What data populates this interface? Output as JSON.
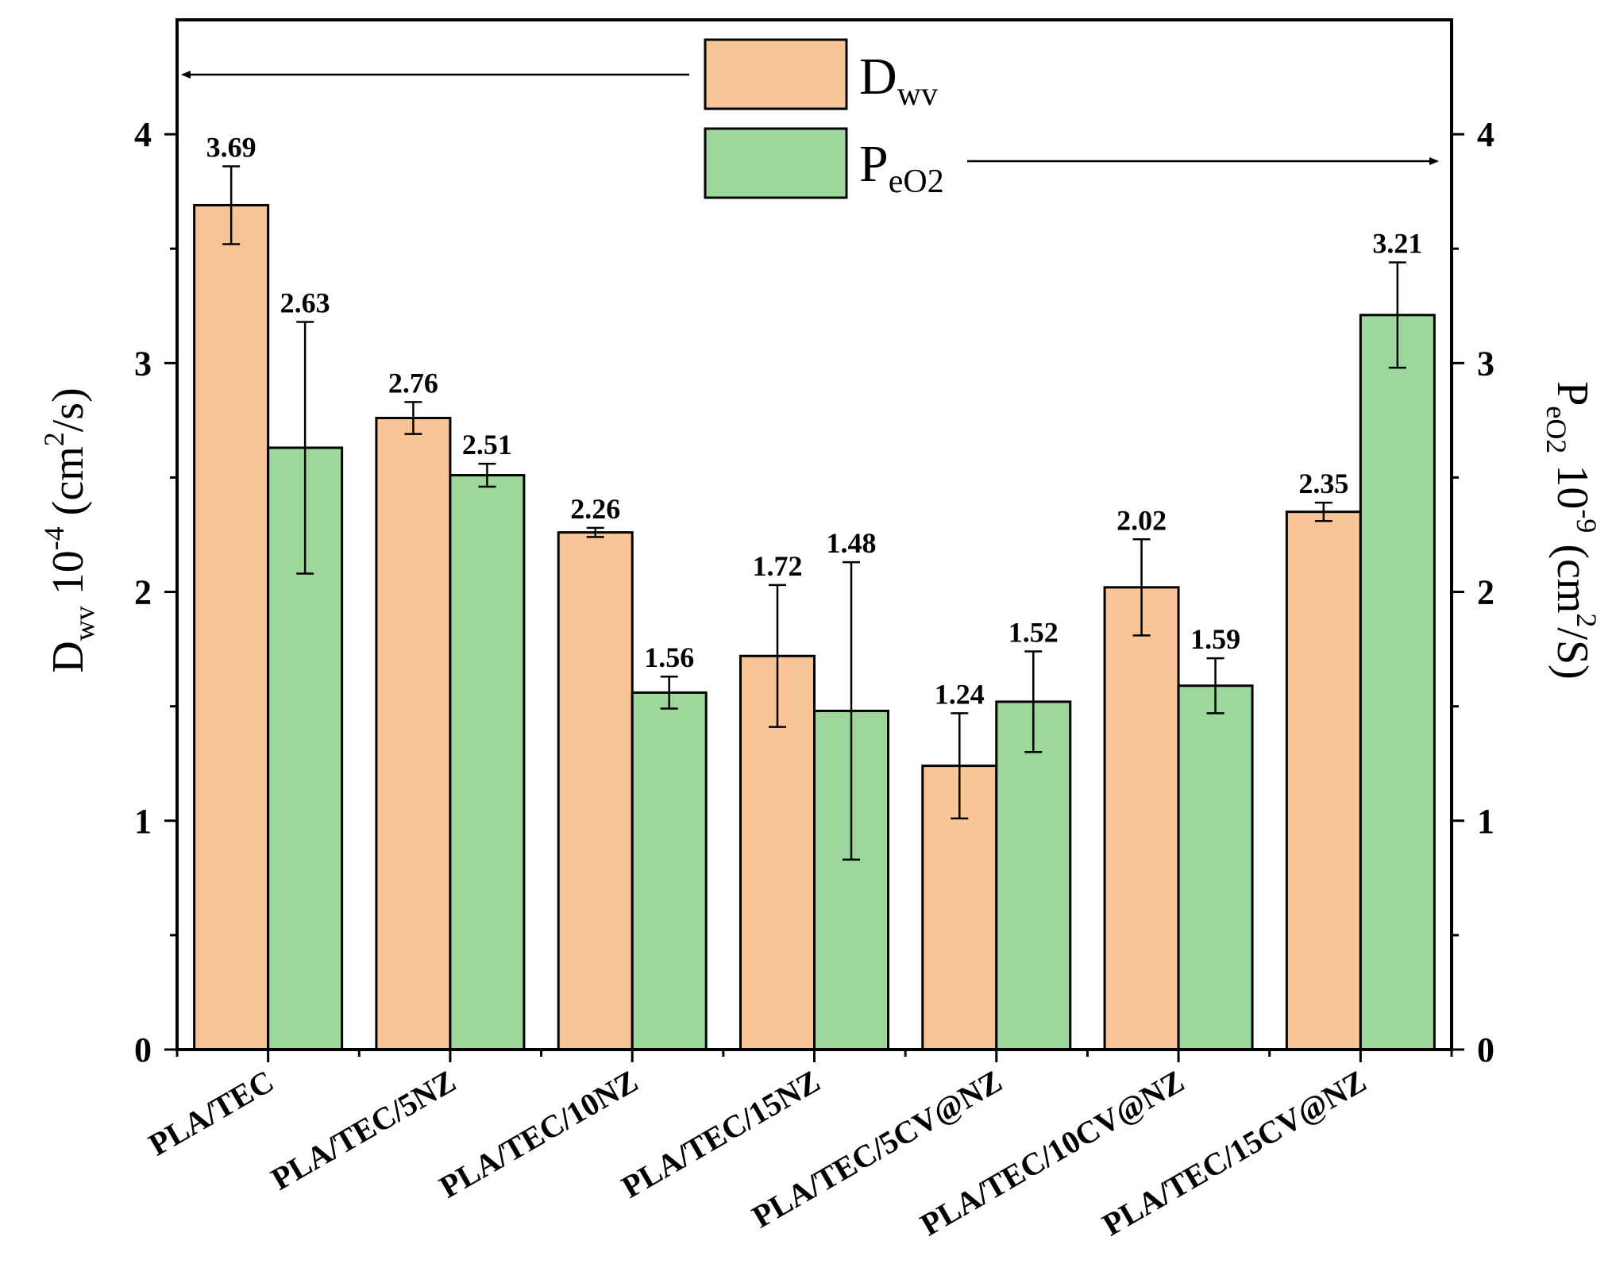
{
  "chart_data": {
    "type": "bar",
    "categories": [
      "PLA/TEC",
      "PLA/TEC/5NZ",
      "PLA/TEC/10NZ",
      "PLA/TEC/15NZ",
      "PLA/TEC/5CV@NZ",
      "PLA/TEC/10CV@NZ",
      "PLA/TEC/15CV@NZ"
    ],
    "series": [
      {
        "name": "Dwv",
        "axis": "left",
        "color": "#f9c596",
        "values": [
          3.69,
          2.76,
          2.26,
          1.72,
          1.24,
          2.02,
          2.35
        ],
        "errors": [
          0.17,
          0.07,
          0.02,
          0.31,
          0.23,
          0.21,
          0.04
        ],
        "labels": [
          "3.69",
          "2.76",
          "2.26",
          "1.72",
          "1.24",
          "2.02",
          "2.35"
        ]
      },
      {
        "name": "PeO2",
        "axis": "right",
        "color": "#9ed79c",
        "values": [
          2.63,
          2.51,
          1.56,
          1.48,
          1.52,
          1.59,
          3.21
        ],
        "errors": [
          0.55,
          0.05,
          0.07,
          0.65,
          0.22,
          0.12,
          0.23
        ],
        "labels": [
          "2.63",
          "2.51",
          "1.56",
          "1.48",
          "1.52",
          "1.59",
          "3.21"
        ]
      }
    ],
    "ylim": [
      0,
      4.5
    ],
    "y2lim": [
      0,
      4.5
    ],
    "yticks": [
      "0",
      "1",
      "2",
      "3",
      "4"
    ],
    "y2ticks": [
      "0",
      "1",
      "2",
      "3",
      "4"
    ],
    "ylabel": {
      "main": "D",
      "sub": "wv",
      "rest": " 10",
      "sup": "-4",
      "unit_open": " (cm",
      "unit_sup": "2",
      "unit_close": "/s)"
    },
    "y2label": {
      "main": "P",
      "sub": "eO2",
      "rest": " 10",
      "sup": "-9",
      "unit_open": " (cm",
      "unit_sup": "2",
      "unit_close": "/S)"
    },
    "legend": {
      "placement": "top-center",
      "items": [
        {
          "main": "D",
          "sub": "wv",
          "color": "#f9c596",
          "arrow": "left"
        },
        {
          "main": "P",
          "sub": "eO2",
          "color": "#9ed79c",
          "arrow": "right"
        }
      ]
    },
    "grid": false
  }
}
